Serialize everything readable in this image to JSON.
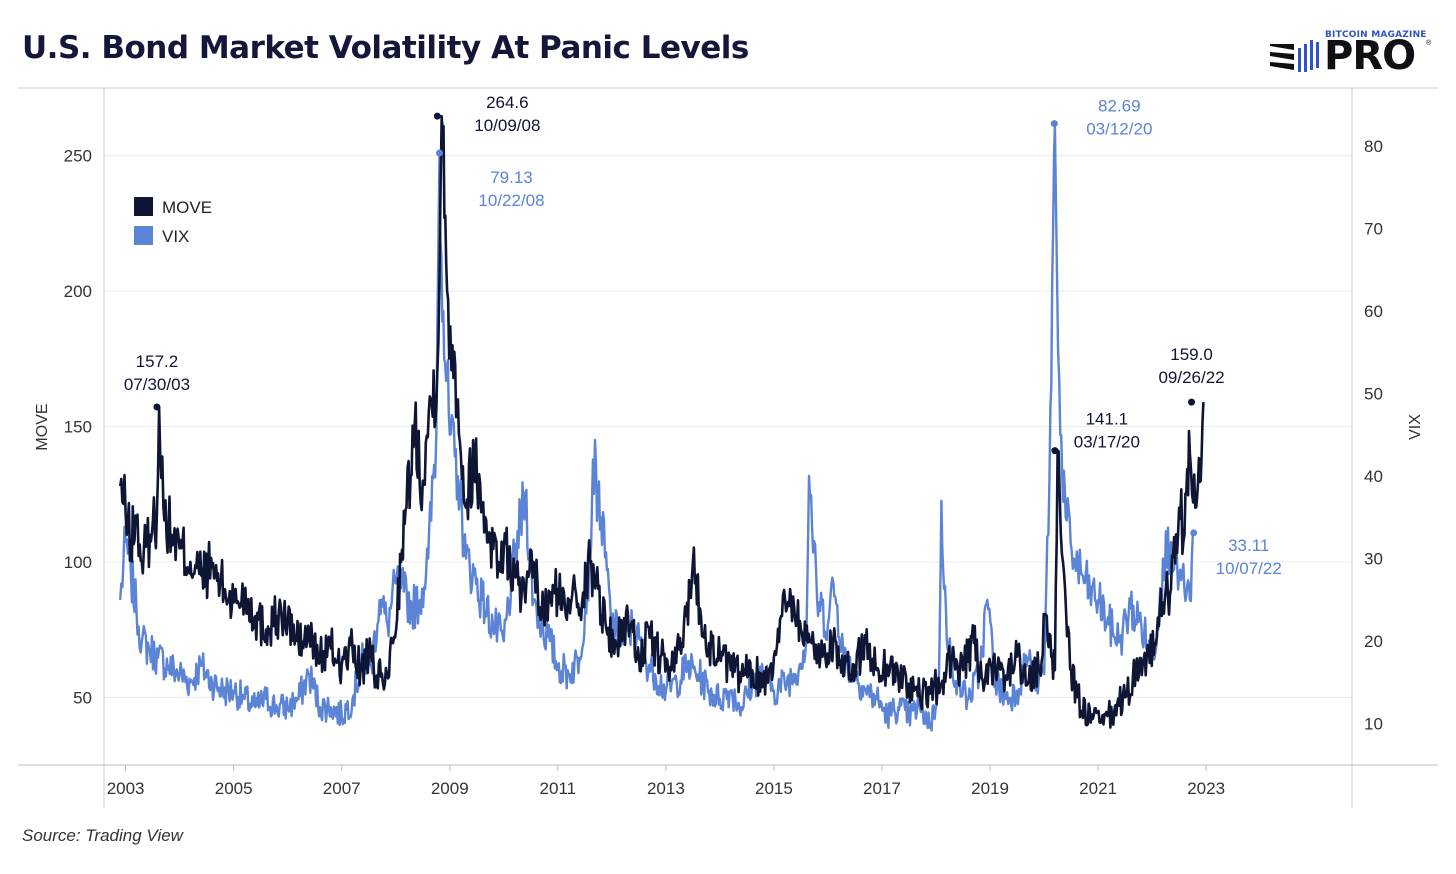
{
  "title": "U.S. Bond Market Volatility At Panic Levels",
  "logo": {
    "small_text": "BITCOIN MAGAZINE",
    "big_text": "PRO",
    "reg_mark": "®"
  },
  "source": "Source: Trading View",
  "colors": {
    "move": "#0f1535",
    "vix": "#5b84d6",
    "title": "#14163a"
  },
  "chart_data": {
    "type": "line",
    "title": "U.S. Bond Market Volatility At Panic Levels",
    "xlabel": "",
    "ylabel": "MOVE",
    "y2label": "VIX",
    "xlim": [
      2002.6,
      2025.7
    ],
    "ylim": [
      25,
      275
    ],
    "y2lim": [
      5,
      87
    ],
    "x_ticks": [
      "2003",
      "2005",
      "2007",
      "2009",
      "2011",
      "2013",
      "2015",
      "2017",
      "2019",
      "2021",
      "2023"
    ],
    "y_ticks": [
      50,
      100,
      150,
      200,
      250
    ],
    "y2_ticks": [
      10,
      20,
      30,
      40,
      50,
      60,
      70,
      80
    ],
    "grid": true,
    "legend": {
      "position": "top-left",
      "entries": [
        "MOVE",
        "VIX"
      ]
    },
    "series": [
      {
        "name": "MOVE",
        "axis": "left",
        "color": "#0f1535",
        "x": [
          2002.9,
          2003.0,
          2003.1,
          2003.2,
          2003.3,
          2003.45,
          2003.58,
          2003.62,
          2003.7,
          2003.85,
          2004.0,
          2004.2,
          2004.4,
          2004.6,
          2004.75,
          2005.0,
          2005.2,
          2005.4,
          2005.6,
          2005.8,
          2006.0,
          2006.2,
          2006.4,
          2006.6,
          2006.8,
          2007.0,
          2007.2,
          2007.35,
          2007.5,
          2007.65,
          2007.8,
          2007.95,
          2008.1,
          2008.2,
          2008.35,
          2008.5,
          2008.65,
          2008.77,
          2008.85,
          2008.95,
          2009.05,
          2009.15,
          2009.3,
          2009.45,
          2009.6,
          2009.75,
          2009.9,
          2010.0,
          2010.2,
          2010.4,
          2010.55,
          2010.7,
          2010.85,
          2011.0,
          2011.15,
          2011.3,
          2011.45,
          2011.6,
          2011.75,
          2011.9,
          2012.1,
          2012.3,
          2012.5,
          2012.7,
          2012.9,
          2013.1,
          2013.3,
          2013.5,
          2013.65,
          2013.8,
          2014.0,
          2014.2,
          2014.4,
          2014.6,
          2014.8,
          2015.0,
          2015.15,
          2015.3,
          2015.5,
          2015.7,
          2015.9,
          2016.1,
          2016.3,
          2016.5,
          2016.7,
          2016.9,
          2017.1,
          2017.3,
          2017.5,
          2017.7,
          2017.9,
          2018.1,
          2018.3,
          2018.5,
          2018.7,
          2018.9,
          2019.1,
          2019.3,
          2019.5,
          2019.7,
          2019.9,
          2020.05,
          2020.15,
          2020.2,
          2020.25,
          2020.35,
          2020.5,
          2020.7,
          2020.9,
          2021.1,
          2021.3,
          2021.5,
          2021.7,
          2021.9,
          2022.05,
          2022.2,
          2022.35,
          2022.5,
          2022.6,
          2022.7,
          2022.8,
          2022.9,
          2022.95
        ],
        "values": [
          128,
          118,
          108,
          115,
          100,
          110,
          118,
          157,
          120,
          110,
          105,
          100,
          95,
          98,
          92,
          85,
          88,
          80,
          75,
          80,
          78,
          70,
          72,
          65,
          68,
          62,
          68,
          60,
          65,
          58,
          55,
          70,
          100,
          120,
          150,
          130,
          160,
          170,
          264.6,
          200,
          180,
          160,
          120,
          140,
          120,
          110,
          100,
          105,
          95,
          85,
          100,
          80,
          85,
          90,
          80,
          95,
          85,
          100,
          90,
          75,
          70,
          80,
          65,
          72,
          65,
          60,
          70,
          100,
          80,
          70,
          65,
          60,
          58,
          60,
          55,
          65,
          80,
          90,
          75,
          70,
          65,
          72,
          58,
          62,
          70,
          60,
          62,
          58,
          55,
          50,
          52,
          55,
          65,
          60,
          70,
          55,
          60,
          58,
          65,
          55,
          60,
          80,
          65,
          60,
          141.1,
          100,
          60,
          45,
          42,
          40,
          45,
          50,
          60,
          65,
          70,
          85,
          90,
          120,
          110,
          140,
          120,
          130,
          159
        ]
      },
      {
        "name": "VIX",
        "axis": "right",
        "color": "#5b84d6",
        "x": [
          2002.9,
          2003.0,
          2003.1,
          2003.2,
          2003.3,
          2003.45,
          2003.6,
          2003.8,
          2004.0,
          2004.2,
          2004.4,
          2004.6,
          2004.8,
          2005.0,
          2005.2,
          2005.4,
          2005.6,
          2005.8,
          2006.0,
          2006.2,
          2006.4,
          2006.6,
          2006.8,
          2007.0,
          2007.2,
          2007.4,
          2007.55,
          2007.7,
          2007.85,
          2008.0,
          2008.15,
          2008.3,
          2008.45,
          2008.6,
          2008.75,
          2008.81,
          2008.88,
          2009.0,
          2009.15,
          2009.3,
          2009.45,
          2009.6,
          2009.8,
          2010.0,
          2010.2,
          2010.4,
          2010.55,
          2010.7,
          2010.85,
          2011.0,
          2011.2,
          2011.4,
          2011.6,
          2011.65,
          2011.8,
          2012.0,
          2012.2,
          2012.4,
          2012.6,
          2012.8,
          2013.0,
          2013.2,
          2013.4,
          2013.6,
          2013.8,
          2014.0,
          2014.2,
          2014.4,
          2014.6,
          2014.8,
          2015.0,
          2015.2,
          2015.4,
          2015.6,
          2015.65,
          2015.8,
          2016.0,
          2016.1,
          2016.3,
          2016.5,
          2016.7,
          2016.9,
          2017.1,
          2017.3,
          2017.5,
          2017.7,
          2017.9,
          2018.05,
          2018.1,
          2018.2,
          2018.4,
          2018.6,
          2018.8,
          2018.95,
          2019.1,
          2019.3,
          2019.5,
          2019.7,
          2019.9,
          2020.0,
          2020.1,
          2020.2,
          2020.3,
          2020.4,
          2020.55,
          2020.7,
          2020.85,
          2021.0,
          2021.2,
          2021.4,
          2021.6,
          2021.8,
          2022.0,
          2022.1,
          2022.2,
          2022.35,
          2022.5,
          2022.6,
          2022.7,
          2022.77
        ],
        "values": [
          25,
          32,
          28,
          24,
          20,
          19,
          18,
          17,
          16,
          15,
          17,
          15,
          14,
          14,
          13,
          12,
          13,
          12,
          12,
          13,
          16,
          12,
          12,
          11,
          13,
          18,
          17,
          25,
          22,
          27,
          26,
          24,
          25,
          30,
          45,
          79.13,
          60,
          45,
          40,
          30,
          28,
          25,
          22,
          20,
          30,
          38,
          25,
          22,
          20,
          17,
          16,
          18,
          30,
          42,
          35,
          22,
          20,
          22,
          18,
          16,
          14,
          15,
          17,
          16,
          14,
          13,
          14,
          12,
          15,
          16,
          14,
          15,
          16,
          20,
          40,
          25,
          22,
          27,
          18,
          16,
          14,
          13,
          11,
          12,
          11,
          12,
          10,
          14,
          37,
          20,
          15,
          13,
          16,
          25,
          15,
          13,
          14,
          18,
          15,
          16,
          40,
          82.69,
          45,
          35,
          30,
          28,
          26,
          25,
          22,
          20,
          24,
          22,
          18,
          22,
          30,
          32,
          28,
          26,
          25,
          33.11
        ]
      }
    ],
    "annotations": [
      {
        "series": "MOVE",
        "value": "157.2",
        "date": "07/30/03",
        "x": 2003.58,
        "y": 157.2
      },
      {
        "series": "MOVE",
        "value": "264.6",
        "date": "10/09/08",
        "x": 2008.77,
        "y": 264.6
      },
      {
        "series": "VIX",
        "value": "79.13",
        "date": "10/22/08",
        "x": 2008.81,
        "y": 79.13
      },
      {
        "series": "VIX",
        "value": "82.69",
        "date": "03/12/20",
        "x": 2020.19,
        "y": 82.69
      },
      {
        "series": "MOVE",
        "value": "141.1",
        "date": "03/17/20",
        "x": 2020.2,
        "y": 141.1
      },
      {
        "series": "MOVE",
        "value": "159.0",
        "date": "09/26/22",
        "x": 2022.73,
        "y": 159.0
      },
      {
        "series": "VIX",
        "value": "33.11",
        "date": "10/07/22",
        "x": 2022.77,
        "y": 33.11
      }
    ]
  }
}
